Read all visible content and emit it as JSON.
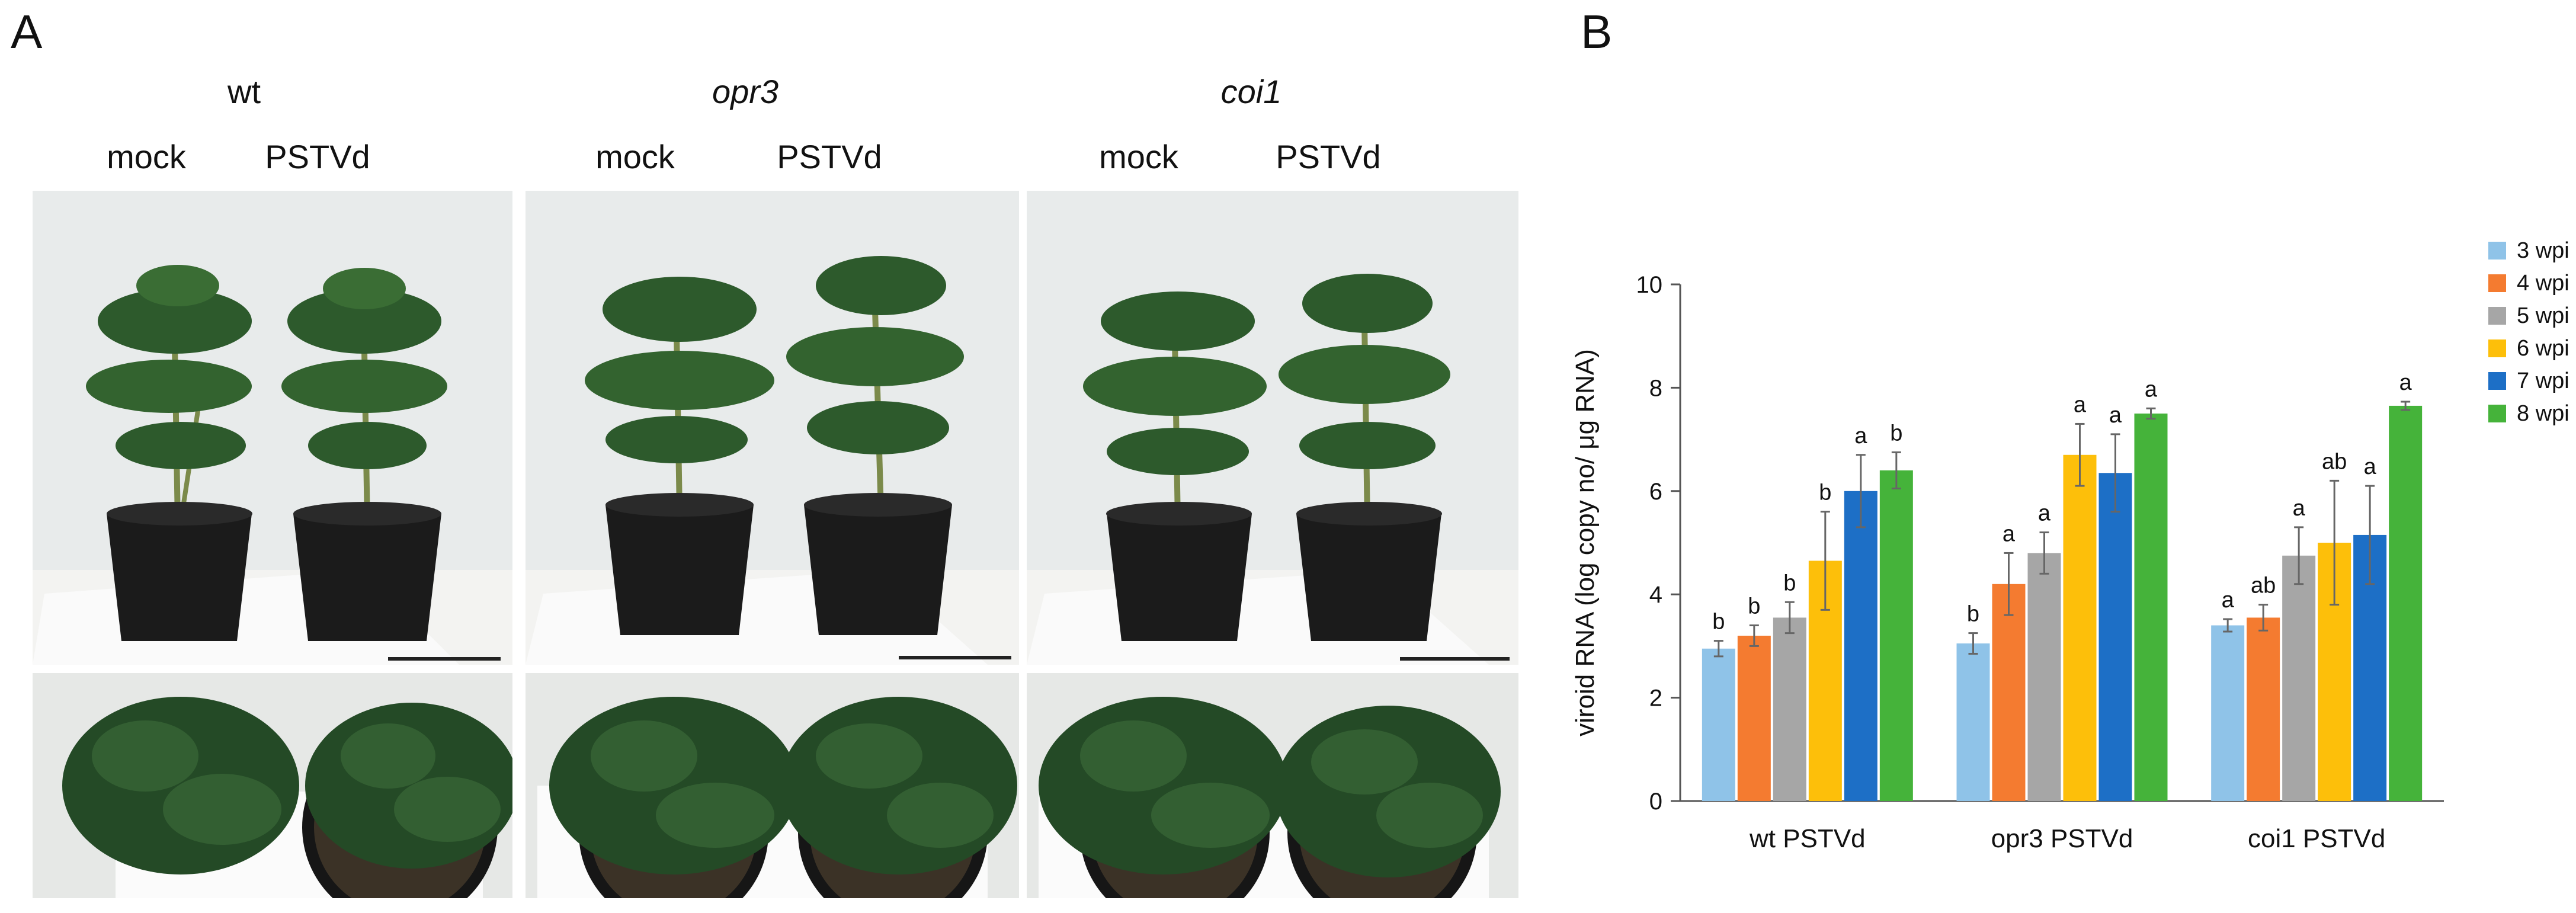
{
  "panels": {
    "a_label": "A",
    "b_label": "B"
  },
  "photo_panel": {
    "genotypes": [
      "wt",
      "opr3",
      "coi1"
    ],
    "treatments": [
      "mock",
      "PSTVd"
    ]
  },
  "colors": {
    "wpi3": "#8fc3e8",
    "wpi4": "#f47b30",
    "wpi5": "#a6a6a6",
    "wpi6": "#fdbf0a",
    "wpi7": "#1d6fc6",
    "wpi8": "#45b33a",
    "leaf": "#2c5a2e",
    "pot": "#1b1b1b",
    "wall": "#e9ecec"
  },
  "chart_data": {
    "type": "bar",
    "categories": [
      "wt PSTVd",
      "opr3 PSTVd",
      "coi1 PSTVd"
    ],
    "ylabel": "viroid RNA (log copy no/ μg RNA)",
    "ylim": [
      0,
      10
    ],
    "yticks": [
      "0",
      "2",
      "4",
      "6",
      "8",
      "10"
    ],
    "legend_position": "top-right",
    "grid": false,
    "series": [
      {
        "name": "3 wpi",
        "color": "#8fc3e8",
        "values": [
          2.95,
          3.05,
          3.4
        ],
        "errors": [
          0.15,
          0.2,
          0.12
        ],
        "letters": [
          "b",
          "b",
          "a"
        ]
      },
      {
        "name": "4 wpi",
        "color": "#f47b30",
        "values": [
          3.2,
          4.2,
          3.55
        ],
        "errors": [
          0.2,
          0.6,
          0.25
        ],
        "letters": [
          "b",
          "a",
          "ab"
        ]
      },
      {
        "name": "5 wpi",
        "color": "#a6a6a6",
        "values": [
          3.55,
          4.8,
          4.75
        ],
        "errors": [
          0.3,
          0.4,
          0.55
        ],
        "letters": [
          "b",
          "a",
          "a"
        ]
      },
      {
        "name": "6 wpi",
        "color": "#fdbf0a",
        "values": [
          4.65,
          6.7,
          5.0
        ],
        "errors": [
          0.95,
          0.6,
          1.2
        ],
        "letters": [
          "b",
          "a",
          "ab"
        ]
      },
      {
        "name": "7 wpi",
        "color": "#1d6fc6",
        "values": [
          6.0,
          6.35,
          5.15
        ],
        "errors": [
          0.7,
          0.75,
          0.95
        ],
        "letters": [
          "a",
          "a",
          "a"
        ]
      },
      {
        "name": "8 wpi",
        "color": "#45b33a",
        "values": [
          6.4,
          7.5,
          7.65
        ],
        "errors": [
          0.35,
          0.1,
          0.08
        ],
        "letters": [
          "b",
          "a",
          "a"
        ]
      }
    ]
  }
}
